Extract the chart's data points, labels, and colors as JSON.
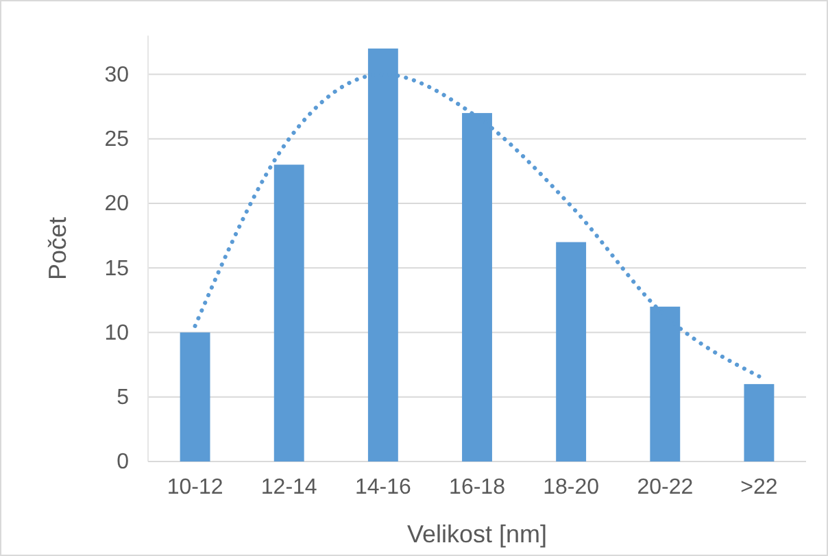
{
  "chart_data": {
    "type": "bar",
    "xlabel": "Velikost [nm]",
    "ylabel": "Počet",
    "categories": [
      "10-12",
      "12-14",
      "14-16",
      "16-18",
      "18-20",
      "20-22",
      ">22"
    ],
    "series": [
      {
        "color": "#5b9bd5",
        "values": [
          10,
          23,
          32,
          27,
          17,
          12,
          6
        ]
      },
      {
        "type": "line",
        "color": "#5b9bd5",
        "line_style": "dotted",
        "marker": "none",
        "values": [
          10.5,
          25,
          30,
          26.7,
          19.8,
          11.3,
          6.6
        ]
      }
    ],
    "ylim": [
      0,
      33
    ],
    "yticks": [
      0,
      5,
      10,
      15,
      20,
      25,
      30
    ],
    "grid": "y"
  }
}
